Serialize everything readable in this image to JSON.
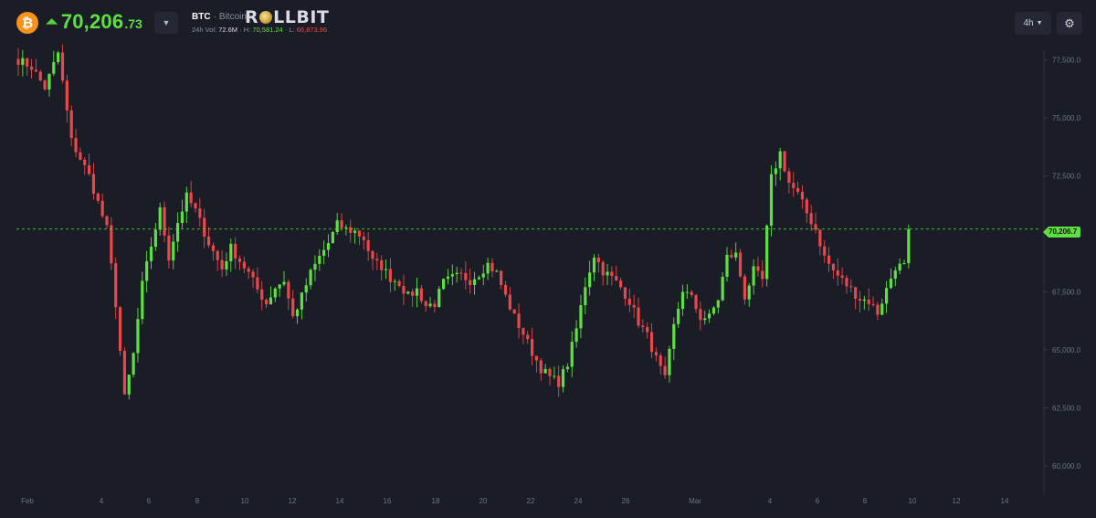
{
  "header": {
    "coin_icon": "bitcoin-icon",
    "coin_symbol_glyph": "₿",
    "price_arrow": "double-chevron-up-icon",
    "price_main": "70,206",
    "price_decimals": ".73",
    "symbol": "BTC",
    "separator": "·",
    "symbol_name": "Bitcoin",
    "brand_prefix": "R",
    "brand_suffix": "LLBIT",
    "stats": {
      "vol_label": "24h Vol:",
      "vol_value": "72.6M",
      "high_label": "H:",
      "high_value": "70,581.24",
      "low_label": "L:",
      "low_value": "66,873.96"
    },
    "timeframe": "4h",
    "settings_icon": "gear-icon"
  },
  "colors": {
    "background": "#1a1c26",
    "up": "#5ee043",
    "down": "#e8484c",
    "accent_btc": "#f7931a"
  },
  "chart_data": {
    "type": "candlestick",
    "current_price": 70206.7,
    "current_price_label": "70,206.7",
    "y_ticks": [
      77500,
      75000,
      72500,
      70000,
      67500,
      65000,
      62500,
      60000
    ],
    "y_tick_labels": [
      "77,500.0",
      "75,000.0",
      "72,500.0",
      "70,000.0",
      "67,500.0",
      "65,000.0",
      "62,500.0",
      "60,000.0"
    ],
    "ylim": [
      59600,
      77800
    ],
    "x_ticks": [
      "Feb",
      "4",
      "6",
      "8",
      "10",
      "12",
      "14",
      "16",
      "18",
      "20",
      "22",
      "24",
      "26",
      "Mar",
      "4",
      "6",
      "8",
      "10",
      "12",
      "14"
    ],
    "anchors": [
      [
        0,
        77500
      ],
      [
        3,
        77200
      ],
      [
        6,
        76300
      ],
      [
        9,
        77800
      ],
      [
        12,
        74000
      ],
      [
        16,
        72500
      ],
      [
        20,
        70200
      ],
      [
        22,
        67000
      ],
      [
        24,
        62900
      ],
      [
        26,
        64800
      ],
      [
        28,
        67800
      ],
      [
        30,
        69500
      ],
      [
        32,
        71000
      ],
      [
        34,
        69000
      ],
      [
        36,
        70500
      ],
      [
        38,
        71600
      ],
      [
        40,
        71000
      ],
      [
        43,
        69600
      ],
      [
        46,
        68500
      ],
      [
        48,
        69400
      ],
      [
        52,
        68300
      ],
      [
        54,
        67600
      ],
      [
        56,
        67000
      ],
      [
        58,
        67700
      ],
      [
        60,
        68000
      ],
      [
        62,
        66400
      ],
      [
        64,
        67300
      ],
      [
        66,
        68300
      ],
      [
        68,
        69000
      ],
      [
        70,
        69600
      ],
      [
        72,
        70400
      ],
      [
        74,
        70200
      ],
      [
        76,
        70100
      ],
      [
        78,
        69800
      ],
      [
        80,
        68800
      ],
      [
        82,
        68600
      ],
      [
        84,
        68100
      ],
      [
        86,
        67900
      ],
      [
        88,
        67300
      ],
      [
        90,
        67600
      ],
      [
        92,
        66900
      ],
      [
        94,
        67000
      ],
      [
        96,
        67900
      ],
      [
        98,
        68100
      ],
      [
        100,
        68200
      ],
      [
        102,
        68000
      ],
      [
        104,
        68300
      ],
      [
        106,
        68700
      ],
      [
        108,
        68300
      ],
      [
        110,
        67300
      ],
      [
        112,
        66400
      ],
      [
        114,
        65700
      ],
      [
        116,
        64900
      ],
      [
        118,
        64200
      ],
      [
        120,
        63800
      ],
      [
        122,
        63600
      ],
      [
        124,
        64400
      ],
      [
        126,
        65900
      ],
      [
        128,
        67800
      ],
      [
        130,
        69100
      ],
      [
        132,
        68400
      ],
      [
        134,
        68100
      ],
      [
        136,
        67700
      ],
      [
        138,
        67100
      ],
      [
        140,
        66200
      ],
      [
        142,
        65600
      ],
      [
        144,
        64600
      ],
      [
        146,
        63700
      ],
      [
        148,
        66000
      ],
      [
        150,
        67600
      ],
      [
        152,
        67200
      ],
      [
        154,
        66400
      ],
      [
        156,
        66400
      ],
      [
        158,
        67200
      ],
      [
        160,
        69000
      ],
      [
        162,
        69100
      ],
      [
        164,
        67300
      ],
      [
        166,
        68400
      ],
      [
        168,
        68000
      ],
      [
        170,
        72400
      ],
      [
        172,
        73500
      ],
      [
        174,
        72200
      ],
      [
        176,
        71700
      ],
      [
        178,
        70900
      ],
      [
        180,
        70200
      ],
      [
        182,
        69000
      ],
      [
        184,
        68400
      ],
      [
        186,
        68000
      ],
      [
        188,
        67600
      ],
      [
        190,
        67200
      ],
      [
        192,
        67100
      ],
      [
        194,
        66600
      ],
      [
        196,
        67600
      ],
      [
        198,
        68600
      ],
      [
        200,
        68600
      ],
      [
        201,
        70200
      ]
    ]
  }
}
